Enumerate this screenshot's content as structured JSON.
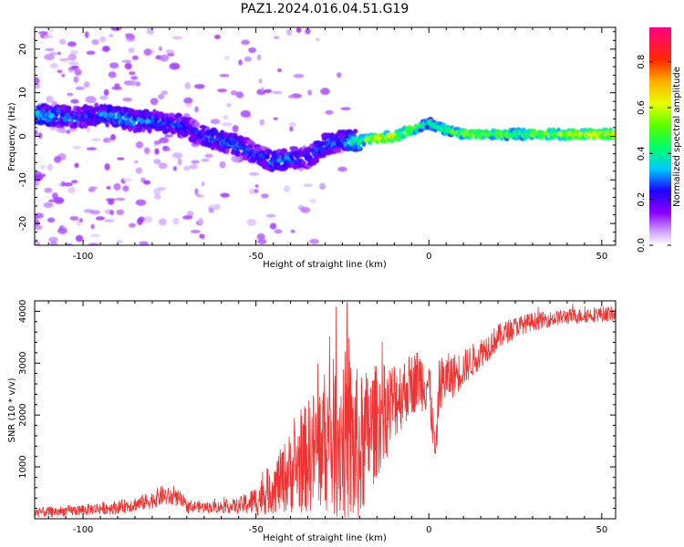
{
  "figure": {
    "title": "PAZ1.2024.016.04.51.G19"
  },
  "chart_data": [
    {
      "type": "heatmap",
      "xlabel": "Height of straight line (km)",
      "ylabel": "Frequency (Hz)",
      "xlim": [
        -114,
        54
      ],
      "ylim": [
        -25,
        25
      ],
      "xticks": [
        -100,
        -50,
        0,
        50
      ],
      "yticks": [
        -20,
        -10,
        0,
        10,
        20
      ],
      "grid": false,
      "colorbar": {
        "label": "Normalized spectral amplitude",
        "ticks": [
          0.0,
          0.2,
          0.4,
          0.6,
          0.8
        ],
        "range": [
          0,
          0.95
        ],
        "colormap": "gist_rainbow_r"
      },
      "ridge": {
        "x": [
          -112,
          -105,
          -100,
          -95,
          -90,
          -85,
          -80,
          -75,
          -70,
          -65,
          -60,
          -55,
          -50,
          -45,
          -40,
          -35,
          -30,
          -25,
          -20,
          -15,
          -10,
          -5,
          0,
          5,
          10,
          15,
          20,
          25,
          30,
          35,
          40,
          45,
          50,
          54
        ],
        "frequency": [
          5,
          4.5,
          4.5,
          5,
          4.5,
          3.5,
          3.5,
          3,
          2,
          0,
          -1,
          -2,
          -4,
          -6,
          -5,
          -5,
          -2,
          -1,
          -1,
          -0.5,
          0,
          1.5,
          3,
          1.5,
          0.5,
          0.5,
          0.5,
          0.5,
          0.5,
          0.5,
          0.5,
          0.5,
          0.5,
          0.5
        ],
        "amplitude": [
          0.35,
          0.3,
          0.25,
          0.3,
          0.35,
          0.3,
          0.3,
          0.28,
          0.25,
          0.25,
          0.3,
          0.3,
          0.25,
          0.3,
          0.3,
          0.25,
          0.3,
          0.3,
          0.45,
          0.7,
          0.75,
          0.6,
          0.45,
          0.55,
          0.6,
          0.6,
          0.6,
          0.55,
          0.6,
          0.6,
          0.65,
          0.7,
          0.7,
          0.7
        ]
      }
    },
    {
      "type": "line",
      "xlabel": "Height of straight line (km)",
      "ylabel": "SNR (10 * v/v)",
      "xlim": [
        -114,
        54
      ],
      "ylim": [
        0,
        4200
      ],
      "xticks": [
        -100,
        -50,
        0,
        50
      ],
      "yticks": [
        1000,
        2000,
        3000,
        4000
      ],
      "grid": false,
      "series": [
        {
          "color": "#ee3333",
          "x": [
            -114,
            -110,
            -105,
            -100,
            -95,
            -90,
            -85,
            -80,
            -77,
            -75,
            -72,
            -70,
            -65,
            -60,
            -55,
            -50,
            -45,
            -40,
            -35,
            -30,
            -25,
            -22,
            -20,
            -18,
            -15,
            -12,
            -10,
            -8,
            -5,
            -3,
            0,
            2,
            3,
            5,
            8,
            10,
            15,
            20,
            25,
            30,
            35,
            40,
            45,
            50,
            54
          ],
          "mean": [
            120,
            130,
            150,
            170,
            200,
            220,
            280,
            360,
            450,
            420,
            380,
            250,
            220,
            230,
            250,
            350,
            600,
            900,
            1200,
            1500,
            1600,
            1400,
            1250,
            1600,
            1900,
            2100,
            2300,
            2400,
            2600,
            2700,
            2600,
            1200,
            2600,
            2700,
            2800,
            2900,
            3200,
            3500,
            3700,
            3800,
            3850,
            3900,
            3920,
            3950,
            3950
          ],
          "noise": [
            100,
            100,
            100,
            110,
            120,
            130,
            140,
            170,
            200,
            180,
            160,
            120,
            110,
            120,
            150,
            300,
            500,
            800,
            1100,
            1400,
            1700,
            1800,
            1500,
            1300,
            1100,
            900,
            800,
            700,
            600,
            600,
            600,
            300,
            500,
            500,
            400,
            350,
            300,
            250,
            200,
            180,
            150,
            150,
            150,
            150,
            150
          ]
        }
      ]
    }
  ]
}
